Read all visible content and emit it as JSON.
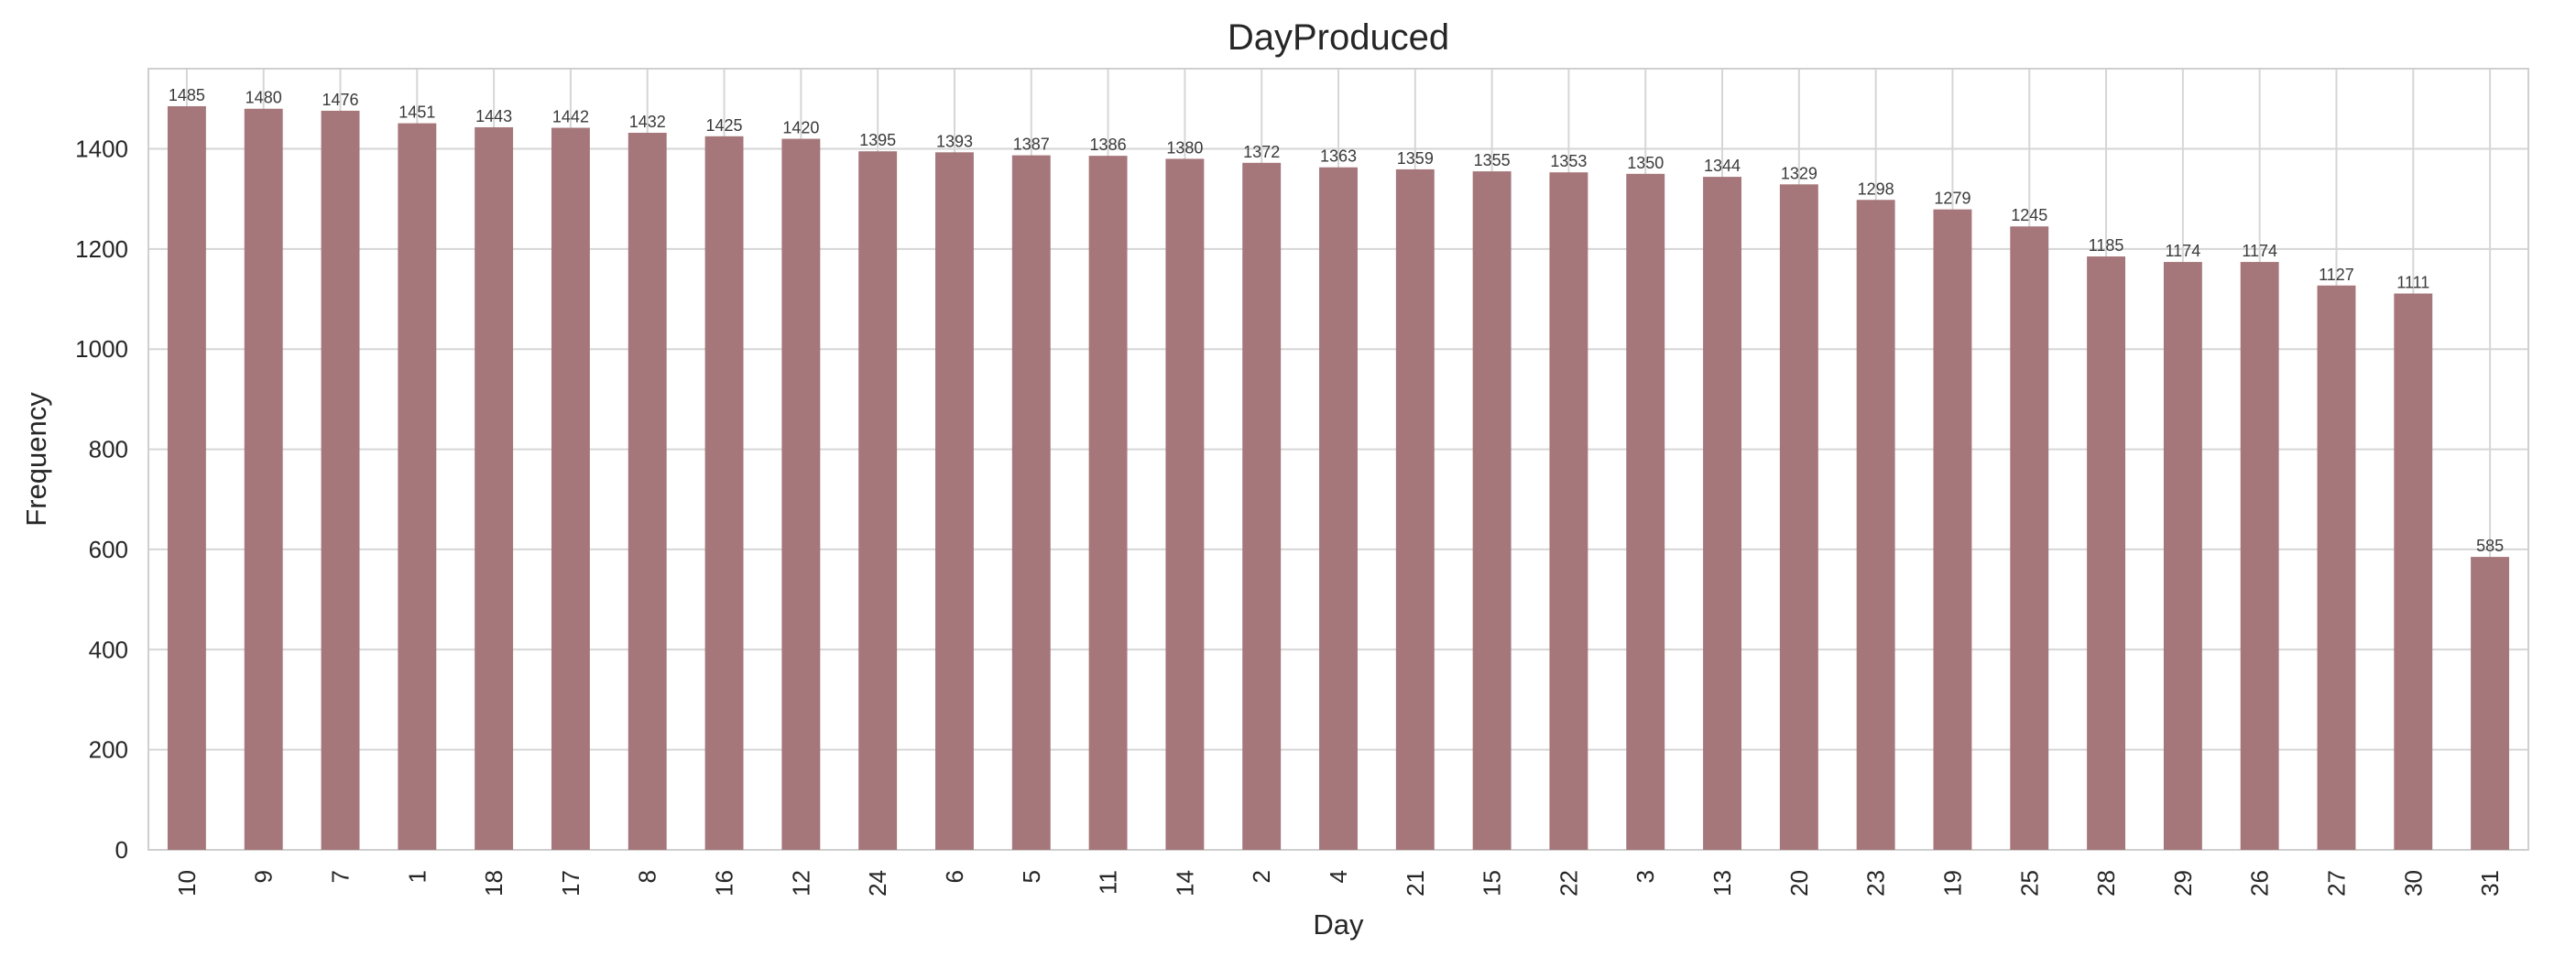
{
  "chart_data": {
    "type": "bar",
    "title": "DayProduced",
    "xlabel": "Day",
    "ylabel": "Frequency",
    "categories": [
      "10",
      "9",
      "7",
      "1",
      "18",
      "17",
      "8",
      "16",
      "12",
      "24",
      "6",
      "5",
      "11",
      "14",
      "2",
      "4",
      "21",
      "15",
      "22",
      "3",
      "13",
      "20",
      "23",
      "19",
      "25",
      "28",
      "29",
      "26",
      "27",
      "30",
      "31"
    ],
    "values": [
      1485,
      1480,
      1476,
      1451,
      1443,
      1442,
      1432,
      1425,
      1420,
      1395,
      1393,
      1387,
      1386,
      1380,
      1372,
      1363,
      1359,
      1355,
      1353,
      1350,
      1344,
      1329,
      1298,
      1279,
      1245,
      1185,
      1174,
      1174,
      1127,
      1111,
      585
    ],
    "yticks": [
      0,
      200,
      400,
      600,
      800,
      1000,
      1200,
      1400
    ],
    "ylim": [
      0,
      1560
    ],
    "grid": true,
    "bar_color": "#a5767a"
  }
}
